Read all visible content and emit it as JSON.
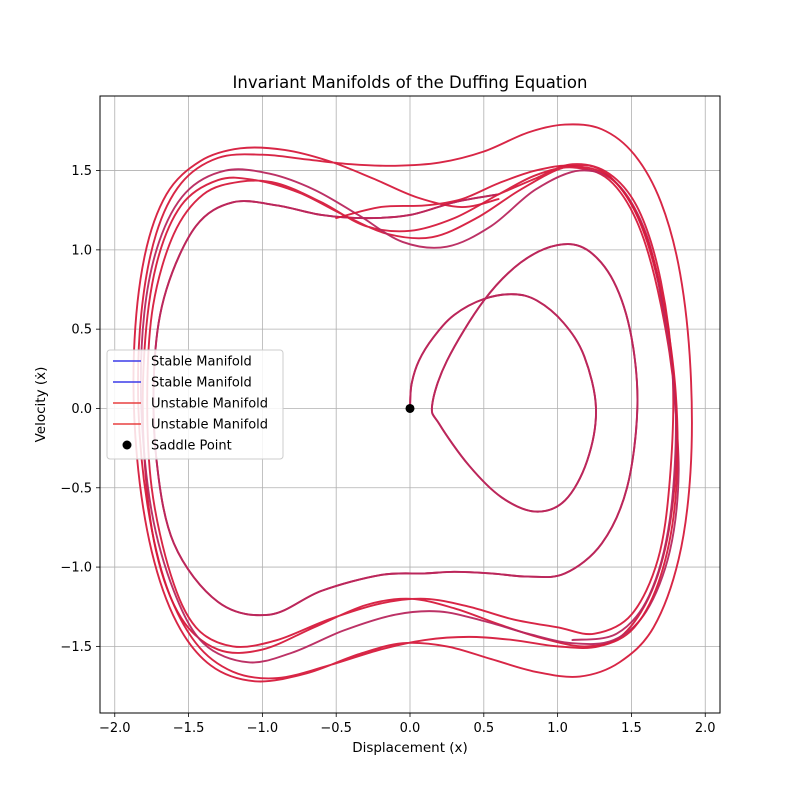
{
  "chart_data": {
    "type": "line",
    "title": "Invariant Manifolds of the Duffing Equation",
    "xlabel": "Displacement (x)",
    "ylabel": "Velocity (ẋ)",
    "xlim": [
      -2.1,
      2.1
    ],
    "ylim": [
      -1.92,
      1.97
    ],
    "xticks": [
      -2.0,
      -1.5,
      -1.0,
      -0.5,
      0.0,
      0.5,
      1.0,
      1.5,
      2.0
    ],
    "xtick_labels": [
      "−2.0",
      "−1.5",
      "−1.0",
      "−0.5",
      "0.0",
      "0.5",
      "1.0",
      "1.5",
      "2.0"
    ],
    "yticks": [
      -1.5,
      -1.0,
      -0.5,
      0.0,
      0.5,
      1.0,
      1.5
    ],
    "ytick_labels": [
      "−1.5",
      "−1.0",
      "−0.5",
      "0.0",
      "0.5",
      "1.0",
      "1.5"
    ],
    "grid": true,
    "legend_position": "center-left",
    "legend": [
      {
        "label": "Stable Manifold",
        "kind": "line",
        "color": "#3b3be8"
      },
      {
        "label": "Stable Manifold",
        "kind": "line",
        "color": "#3b3be8"
      },
      {
        "label": "Unstable Manifold",
        "kind": "line",
        "color": "#e84040"
      },
      {
        "label": "Unstable Manifold",
        "kind": "line",
        "color": "#e84040"
      },
      {
        "label": "Saddle Point",
        "kind": "marker",
        "color": "#000000"
      }
    ],
    "saddle_point": {
      "x": 0.0,
      "y": 0.0
    },
    "manifold_color": "#d61a3c",
    "series": [
      {
        "name": "Unstable Manifold",
        "points": [
          [
            0.0,
            0.0
          ],
          [
            0.01,
            0.15
          ],
          [
            0.06,
            0.3
          ],
          [
            0.16,
            0.45
          ],
          [
            0.3,
            0.59
          ],
          [
            0.5,
            0.69
          ],
          [
            0.7,
            0.72
          ],
          [
            0.86,
            0.68
          ],
          [
            1.04,
            0.54
          ],
          [
            1.18,
            0.33
          ],
          [
            1.26,
            0.0
          ],
          [
            1.2,
            -0.33
          ],
          [
            1.05,
            -0.58
          ],
          [
            0.85,
            -0.65
          ],
          [
            0.62,
            -0.56
          ],
          [
            0.4,
            -0.36
          ],
          [
            0.2,
            -0.1
          ],
          [
            0.15,
            0.02
          ],
          [
            0.25,
            0.3
          ],
          [
            0.5,
            0.68
          ],
          [
            0.75,
            0.92
          ],
          [
            1.0,
            1.03
          ],
          [
            1.2,
            1.0
          ],
          [
            1.38,
            0.8
          ],
          [
            1.5,
            0.45
          ],
          [
            1.54,
            0.0
          ],
          [
            1.47,
            -0.5
          ],
          [
            1.3,
            -0.85
          ],
          [
            1.05,
            -1.04
          ],
          [
            0.8,
            -1.06
          ],
          [
            0.55,
            -1.04
          ],
          [
            0.3,
            -1.03
          ],
          [
            0.1,
            -1.04
          ],
          [
            -0.2,
            -1.05
          ],
          [
            -0.6,
            -1.15
          ],
          [
            -0.95,
            -1.3
          ],
          [
            -1.3,
            -1.22
          ],
          [
            -1.6,
            -0.85
          ],
          [
            -1.72,
            -0.3
          ],
          [
            -1.73,
            0.3
          ],
          [
            -1.65,
            0.75
          ],
          [
            -1.45,
            1.15
          ],
          [
            -1.2,
            1.3
          ],
          [
            -0.9,
            1.28
          ],
          [
            -0.6,
            1.22
          ],
          [
            -0.3,
            1.2
          ],
          [
            0.0,
            1.22
          ],
          [
            0.3,
            1.3
          ],
          [
            0.6,
            1.35
          ]
        ]
      },
      {
        "name": "Stable Manifold",
        "points": [
          [
            0.0,
            0.0
          ],
          [
            0.01,
            0.15
          ],
          [
            0.06,
            0.3
          ],
          [
            0.16,
            0.45
          ],
          [
            0.3,
            0.59
          ],
          [
            0.5,
            0.69
          ],
          [
            0.7,
            0.72
          ],
          [
            0.86,
            0.68
          ],
          [
            1.04,
            0.54
          ],
          [
            1.18,
            0.33
          ],
          [
            1.26,
            0.0
          ],
          [
            1.2,
            -0.33
          ],
          [
            1.05,
            -0.58
          ],
          [
            0.85,
            -0.65
          ],
          [
            0.62,
            -0.56
          ],
          [
            0.4,
            -0.36
          ],
          [
            0.2,
            -0.1
          ],
          [
            0.15,
            0.02
          ],
          [
            0.25,
            0.3
          ],
          [
            0.5,
            0.68
          ],
          [
            0.75,
            0.92
          ],
          [
            1.0,
            1.03
          ],
          [
            1.2,
            1.0
          ],
          [
            1.38,
            0.8
          ],
          [
            1.5,
            0.45
          ],
          [
            1.54,
            0.0
          ],
          [
            1.47,
            -0.5
          ],
          [
            1.3,
            -0.85
          ],
          [
            1.05,
            -1.04
          ],
          [
            0.8,
            -1.06
          ],
          [
            0.55,
            -1.04
          ],
          [
            0.3,
            -1.03
          ],
          [
            0.1,
            -1.04
          ],
          [
            -0.2,
            -1.05
          ],
          [
            -0.6,
            -1.15
          ],
          [
            -0.95,
            -1.3
          ],
          [
            -1.3,
            -1.22
          ],
          [
            -1.6,
            -0.85
          ],
          [
            -1.72,
            -0.3
          ],
          [
            -1.73,
            0.3
          ],
          [
            -1.65,
            0.75
          ],
          [
            -1.45,
            1.15
          ],
          [
            -1.2,
            1.3
          ],
          [
            -0.9,
            1.28
          ],
          [
            -0.6,
            1.22
          ],
          [
            -0.3,
            1.2
          ],
          [
            0.0,
            1.22
          ],
          [
            0.3,
            1.3
          ],
          [
            0.6,
            1.35
          ]
        ]
      },
      {
        "name": "Unstable Manifold",
        "points": [
          [
            0.6,
            1.35
          ],
          [
            0.85,
            1.45
          ],
          [
            1.1,
            1.54
          ],
          [
            1.35,
            1.48
          ],
          [
            1.55,
            1.25
          ],
          [
            1.7,
            0.8
          ],
          [
            1.78,
            0.2
          ],
          [
            1.76,
            -0.45
          ],
          [
            1.68,
            -0.95
          ],
          [
            1.5,
            -1.3
          ],
          [
            1.25,
            -1.42
          ],
          [
            1.0,
            -1.38
          ],
          [
            0.7,
            -1.33
          ],
          [
            0.4,
            -1.25
          ],
          [
            0.1,
            -1.2
          ],
          [
            -0.2,
            -1.23
          ],
          [
            -0.55,
            -1.33
          ],
          [
            -0.9,
            -1.46
          ],
          [
            -1.2,
            -1.5
          ],
          [
            -1.45,
            -1.38
          ],
          [
            -1.62,
            -1.05
          ],
          [
            -1.75,
            -0.5
          ],
          [
            -1.78,
            0.1
          ],
          [
            -1.74,
            0.65
          ],
          [
            -1.6,
            1.1
          ],
          [
            -1.4,
            1.35
          ],
          [
            -1.15,
            1.43
          ],
          [
            -0.9,
            1.42
          ],
          [
            -0.6,
            1.3
          ],
          [
            -0.3,
            1.15
          ],
          [
            0.0,
            1.12
          ],
          [
            0.3,
            1.2
          ],
          [
            0.6,
            1.35
          ],
          [
            0.85,
            1.47
          ],
          [
            1.1,
            1.52
          ],
          [
            1.35,
            1.44
          ],
          [
            1.55,
            1.15
          ],
          [
            1.7,
            0.65
          ],
          [
            1.8,
            0.0
          ],
          [
            1.78,
            -0.6
          ],
          [
            1.66,
            -1.1
          ],
          [
            1.45,
            -1.42
          ],
          [
            1.2,
            -1.5
          ],
          [
            0.9,
            -1.45
          ],
          [
            0.6,
            -1.36
          ],
          [
            0.3,
            -1.26
          ],
          [
            0.0,
            -1.2
          ],
          [
            -0.3,
            -1.24
          ],
          [
            -0.65,
            -1.38
          ],
          [
            -1.0,
            -1.52
          ],
          [
            -1.3,
            -1.52
          ],
          [
            -1.55,
            -1.32
          ],
          [
            -1.72,
            -0.9
          ],
          [
            -1.8,
            -0.3
          ],
          [
            -1.8,
            0.35
          ],
          [
            -1.72,
            0.9
          ],
          [
            -1.55,
            1.28
          ],
          [
            -1.3,
            1.44
          ],
          [
            -1.05,
            1.44
          ],
          [
            -0.75,
            1.36
          ],
          [
            -0.45,
            1.22
          ],
          [
            -0.15,
            1.1
          ],
          [
            0.15,
            1.08
          ],
          [
            0.45,
            1.2
          ],
          [
            0.75,
            1.38
          ],
          [
            1.05,
            1.52
          ],
          [
            1.3,
            1.5
          ],
          [
            1.52,
            1.25
          ],
          [
            1.68,
            0.8
          ],
          [
            1.78,
            0.2
          ]
        ]
      },
      {
        "name": "Stable Manifold",
        "points": [
          [
            1.78,
            0.2
          ],
          [
            1.82,
            -0.4
          ],
          [
            1.76,
            -0.9
          ],
          [
            1.6,
            -1.28
          ],
          [
            1.38,
            -1.46
          ],
          [
            1.1,
            -1.48
          ],
          [
            0.8,
            -1.42
          ],
          [
            0.5,
            -1.34
          ],
          [
            0.2,
            -1.28
          ],
          [
            -0.1,
            -1.3
          ],
          [
            -0.45,
            -1.4
          ],
          [
            -0.8,
            -1.54
          ],
          [
            -1.1,
            -1.6
          ],
          [
            -1.4,
            -1.48
          ],
          [
            -1.6,
            -1.15
          ],
          [
            -1.75,
            -0.65
          ],
          [
            -1.82,
            0.0
          ],
          [
            -1.8,
            0.6
          ],
          [
            -1.7,
            1.05
          ],
          [
            -1.52,
            1.36
          ],
          [
            -1.25,
            1.5
          ],
          [
            -0.95,
            1.48
          ],
          [
            -0.65,
            1.38
          ],
          [
            -0.35,
            1.22
          ],
          [
            -0.05,
            1.05
          ],
          [
            0.25,
            1.02
          ],
          [
            0.55,
            1.15
          ],
          [
            0.85,
            1.38
          ],
          [
            1.15,
            1.5
          ],
          [
            1.4,
            1.42
          ],
          [
            1.6,
            1.1
          ],
          [
            1.72,
            0.6
          ],
          [
            1.8,
            0.0
          ],
          [
            1.76,
            -0.7
          ],
          [
            1.62,
            -1.18
          ],
          [
            1.4,
            -1.42
          ],
          [
            1.1,
            -1.46
          ]
        ]
      },
      {
        "name": "Unstable Manifold",
        "points": [
          [
            -0.5,
            1.2
          ],
          [
            -0.2,
            1.27
          ],
          [
            0.1,
            1.28
          ],
          [
            0.35,
            1.32
          ],
          [
            0.6,
            1.42
          ],
          [
            0.85,
            1.5
          ],
          [
            1.1,
            1.53
          ],
          [
            1.35,
            1.46
          ],
          [
            1.55,
            1.2
          ],
          [
            1.7,
            0.75
          ],
          [
            1.8,
            0.1
          ],
          [
            1.8,
            -0.55
          ],
          [
            1.7,
            -1.05
          ],
          [
            1.52,
            -1.38
          ],
          [
            1.28,
            -1.5
          ],
          [
            1.0,
            -1.5
          ],
          [
            0.7,
            -1.46
          ],
          [
            0.4,
            -1.44
          ],
          [
            0.1,
            -1.46
          ],
          [
            -0.2,
            -1.52
          ],
          [
            -0.55,
            -1.62
          ],
          [
            -0.9,
            -1.7
          ],
          [
            -1.2,
            -1.66
          ],
          [
            -1.45,
            -1.48
          ],
          [
            -1.65,
            -1.12
          ],
          [
            -1.78,
            -0.6
          ],
          [
            -1.84,
            0.0
          ],
          [
            -1.82,
            0.6
          ],
          [
            -1.72,
            1.1
          ],
          [
            -1.55,
            1.42
          ],
          [
            -1.3,
            1.58
          ],
          [
            -1.0,
            1.6
          ],
          [
            -0.7,
            1.57
          ],
          [
            -0.4,
            1.54
          ],
          [
            -0.1,
            1.53
          ],
          [
            0.2,
            1.55
          ],
          [
            0.5,
            1.62
          ],
          [
            0.8,
            1.74
          ],
          [
            1.05,
            1.79
          ],
          [
            1.3,
            1.76
          ],
          [
            1.52,
            1.6
          ],
          [
            1.7,
            1.3
          ],
          [
            1.83,
            0.85
          ],
          [
            1.9,
            0.25
          ],
          [
            1.9,
            -0.4
          ],
          [
            1.82,
            -0.95
          ],
          [
            1.65,
            -1.38
          ],
          [
            1.42,
            -1.6
          ],
          [
            1.15,
            -1.69
          ],
          [
            0.85,
            -1.66
          ],
          [
            0.55,
            -1.58
          ],
          [
            0.25,
            -1.5
          ],
          [
            -0.05,
            -1.48
          ],
          [
            -0.35,
            -1.55
          ],
          [
            -0.7,
            -1.67
          ],
          [
            -1.05,
            -1.72
          ],
          [
            -1.35,
            -1.62
          ],
          [
            -1.58,
            -1.35
          ],
          [
            -1.75,
            -0.9
          ],
          [
            -1.85,
            -0.3
          ],
          [
            -1.87,
            0.35
          ],
          [
            -1.8,
            0.95
          ],
          [
            -1.65,
            1.35
          ],
          [
            -1.42,
            1.56
          ],
          [
            -1.15,
            1.64
          ],
          [
            -0.85,
            1.63
          ],
          [
            -0.55,
            1.56
          ],
          [
            -0.25,
            1.45
          ],
          [
            0.05,
            1.33
          ],
          [
            0.35,
            1.27
          ],
          [
            0.6,
            1.32
          ]
        ]
      }
    ]
  }
}
